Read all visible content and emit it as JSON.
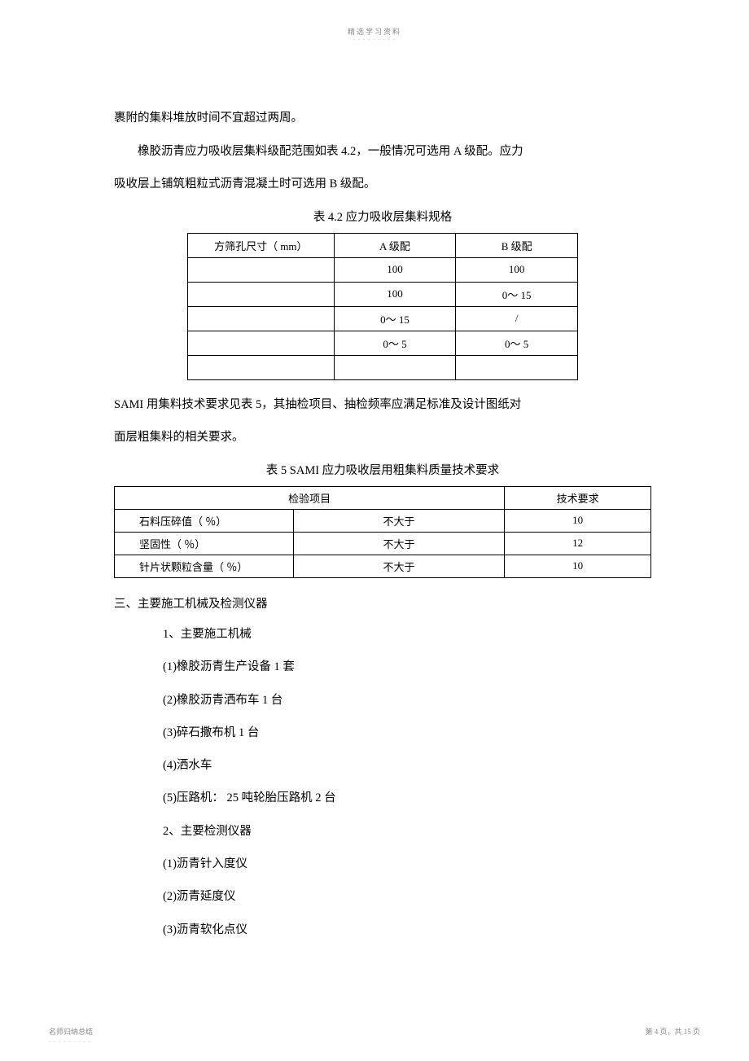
{
  "header": {
    "mark": "精选学习资料",
    "dots": "- - - - - - - - -"
  },
  "body": {
    "p1": "裹附的集料堆放时间不宜超过两周。",
    "p2_part1": "橡胶沥青应力吸收层集料级配范围如表    4.2，一般情况可选用  A 级配。应力",
    "p2_part2": "吸收层上铺筑粗粒式沥青混凝土时可选用    B 级配。",
    "table1_title": "表 4.2    应力吸收层集料规格",
    "table1": {
      "headers": [
        "方筛孔尺寸（ mm）",
        "A 级配",
        "B 级配"
      ],
      "rows": [
        [
          "",
          "100",
          "100"
        ],
        [
          "",
          "100",
          "0～ 15"
        ],
        [
          "",
          "0～ 15",
          "/"
        ],
        [
          "",
          "0～ 5",
          "0～ 5"
        ],
        [
          "",
          "",
          ""
        ]
      ]
    },
    "p3_part1": "SAMI  用集料技术要求见表  5，其抽检项目、抽检频率应满足标准及设计图纸对",
    "p3_part2": "面层粗集料的相关要求。",
    "table2_title": "表 5  SAMI  应力吸收层用粗集料质量技术要求",
    "table2": {
      "header_left": "检验项目",
      "header_right": "技术要求",
      "rows": [
        {
          "name": "石料压碎值（ ％）",
          "cond": "不大于",
          "val": "10"
        },
        {
          "name": "坚固性（ ％）",
          "cond": "不大于",
          "val": "12"
        },
        {
          "name": "针片状颗粒含量（ ％）",
          "cond": "不大于",
          "val": "10"
        }
      ]
    },
    "section3_title": "三、主要施工机械及检测仪器",
    "list": [
      "1、主要施工机械",
      "(1)橡胶沥青生产设备  1 套",
      "(2)橡胶沥青洒布车  1 台",
      "(3)碎石撒布机  1 台",
      "(4)洒水车",
      "(5)压路机： 25 吨轮胎压路机  2 台",
      "2、主要检测仪器",
      "(1)沥青针入度仪",
      "(2)沥青延度仪",
      "(3)沥青软化点仪"
    ]
  },
  "footer": {
    "left": "名师归纳总结",
    "left_dots": "- - - - - - - - -",
    "right": "第 4 页，共 15 页"
  }
}
